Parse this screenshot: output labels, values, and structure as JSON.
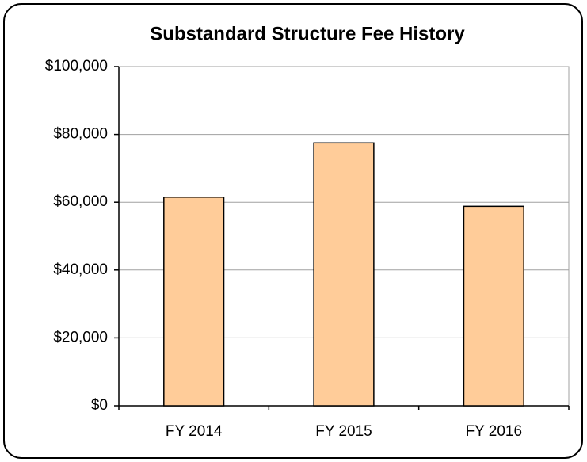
{
  "chart_data": {
    "type": "bar",
    "title": "Substandard Structure Fee History",
    "categories": [
      "FY 2014",
      "FY 2015",
      "FY 2016"
    ],
    "values": [
      61500,
      77500,
      58800
    ],
    "color": "#ffcc99",
    "ylim": [
      0,
      100000
    ],
    "yticks": [
      {
        "value": 0,
        "label": "$0"
      },
      {
        "value": 20000,
        "label": "$20,000"
      },
      {
        "value": 40000,
        "label": "$40,000"
      },
      {
        "value": 60000,
        "label": "$60,000"
      },
      {
        "value": 80000,
        "label": "$80,000"
      },
      {
        "value": 100000,
        "label": "$100,000"
      }
    ],
    "grid": true
  }
}
